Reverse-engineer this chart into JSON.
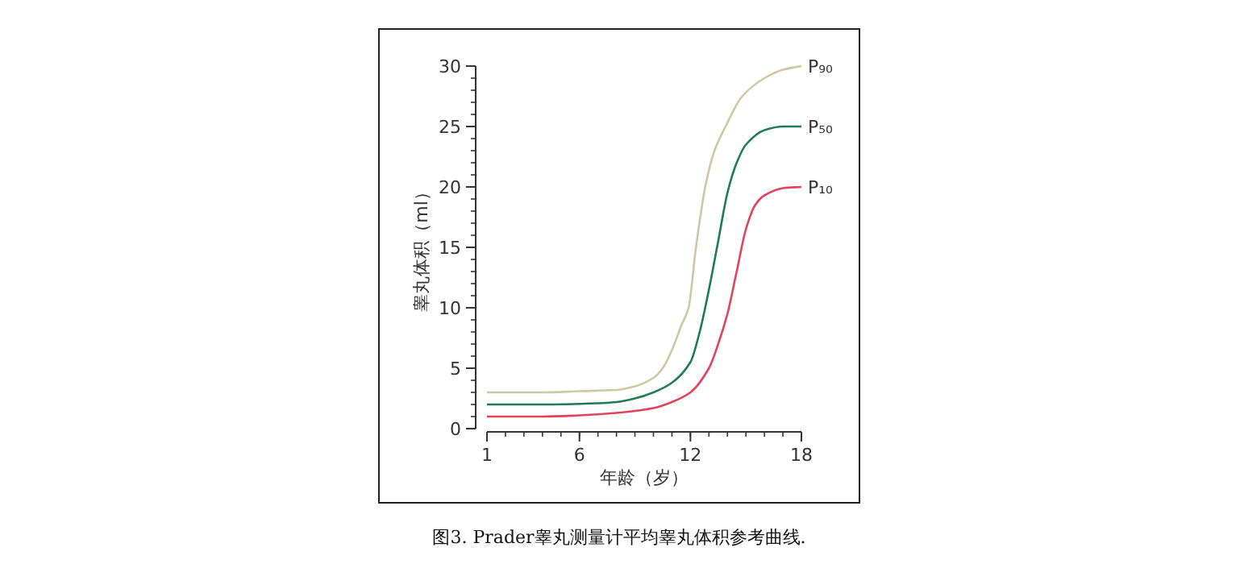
{
  "chart_data": {
    "type": "line",
    "xlabel": "年龄（岁）",
    "ylabel": "睾丸体积（ml）",
    "xlim": [
      1,
      18
    ],
    "ylim": [
      0,
      30
    ],
    "xticks": [
      1,
      6,
      12,
      18
    ],
    "yticks": [
      0,
      5,
      10,
      15,
      20,
      25,
      30
    ],
    "series": [
      {
        "name": "P₉₀",
        "color": "#cdc7a3",
        "x": [
          1,
          4,
          6,
          8,
          9,
          10,
          10.5,
          11,
          11.5,
          11.9,
          12.3,
          12.8,
          13.3,
          13.9,
          14.8,
          16,
          17,
          18
        ],
        "values": [
          3,
          3,
          3.1,
          3.2,
          3.5,
          4.2,
          5,
          6.5,
          8.5,
          10,
          15,
          20,
          23,
          25,
          27.5,
          29,
          29.7,
          30
        ]
      },
      {
        "name": "P₅₀",
        "color": "#1f7a55",
        "x": [
          1,
          4,
          7,
          8,
          9,
          10,
          11,
          12,
          12.5,
          13,
          13.5,
          14,
          14.5,
          15,
          16,
          17,
          18
        ],
        "values": [
          2,
          2,
          2.1,
          2.2,
          2.5,
          3,
          3.8,
          5.5,
          8,
          11.5,
          15.5,
          19.5,
          22,
          23.5,
          24.7,
          25,
          25
        ]
      },
      {
        "name": "P₁₀",
        "color": "#e0445a",
        "x": [
          1,
          4,
          6,
          8,
          10,
          11,
          12,
          13,
          13.5,
          14,
          14.5,
          15,
          15.5,
          16,
          17,
          18
        ],
        "values": [
          1,
          1,
          1.1,
          1.3,
          1.7,
          2.2,
          3,
          5,
          7,
          9.5,
          13,
          16.5,
          18.5,
          19.3,
          19.9,
          20
        ]
      }
    ],
    "annotations": [
      "图3. Prader睾丸测量计平均睾丸体积参考曲线."
    ]
  }
}
